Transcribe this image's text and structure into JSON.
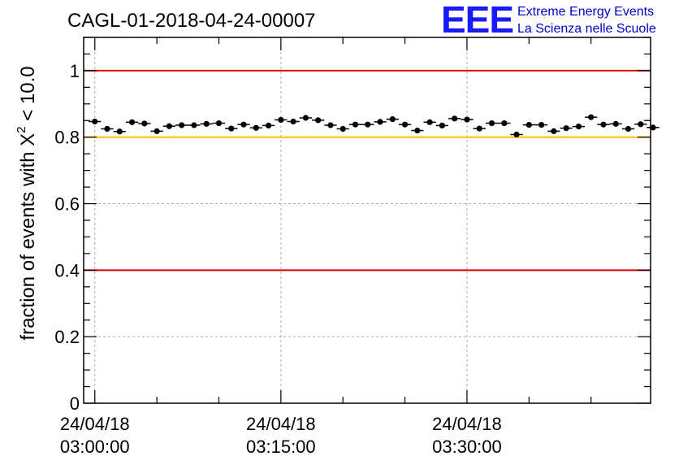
{
  "chart_data": {
    "type": "scatter",
    "title": "CAGL-01-2018-04-24-00007",
    "ylabel_prefix": "fraction of events with ",
    "ylabel_symbol": "X",
    "ylabel_exponent": "2",
    "ylabel_suffix": " < 10.0",
    "xlabel": "",
    "ylim": [
      0,
      1.1
    ],
    "xlim_minutes": [
      -0.9,
      44.8
    ],
    "grid": true,
    "yticks": [
      {
        "value": 0,
        "label": "0"
      },
      {
        "value": 0.2,
        "label": "0.2"
      },
      {
        "value": 0.4,
        "label": "0.4"
      },
      {
        "value": 0.6,
        "label": "0.6"
      },
      {
        "value": 0.8,
        "label": "0.8"
      },
      {
        "value": 1.0,
        "label": "1"
      }
    ],
    "xticks": [
      {
        "minutes": 0,
        "date": "24/04/18",
        "time": "03:00:00"
      },
      {
        "minutes": 15,
        "date": "24/04/18",
        "time": "03:15:00"
      },
      {
        "minutes": 30,
        "date": "24/04/18",
        "time": "03:30:00"
      }
    ],
    "reference_lines": [
      {
        "value": 1.0,
        "color": "#e00000"
      },
      {
        "value": 0.8,
        "color": "#ffc000"
      },
      {
        "value": 0.4,
        "color": "#e00000"
      }
    ],
    "series": [
      {
        "color": "#000000",
        "values": [
          0.847,
          0.825,
          0.817,
          0.845,
          0.841,
          0.818,
          0.833,
          0.836,
          0.836,
          0.84,
          0.842,
          0.826,
          0.838,
          0.828,
          0.835,
          0.852,
          0.847,
          0.858,
          0.851,
          0.836,
          0.825,
          0.838,
          0.838,
          0.846,
          0.854,
          0.838,
          0.82,
          0.845,
          0.835,
          0.856,
          0.853,
          0.826,
          0.842,
          0.842,
          0.808,
          0.837,
          0.837,
          0.818,
          0.827,
          0.832,
          0.86,
          0.838,
          0.84,
          0.825,
          0.839,
          0.829
        ],
        "x_error_minutes": 0.5,
        "y_error": 0.006
      }
    ]
  },
  "logo": {
    "mark": "EEE",
    "line1": "Extreme Energy Events",
    "line2": "La Scienza nelle Scuole"
  }
}
